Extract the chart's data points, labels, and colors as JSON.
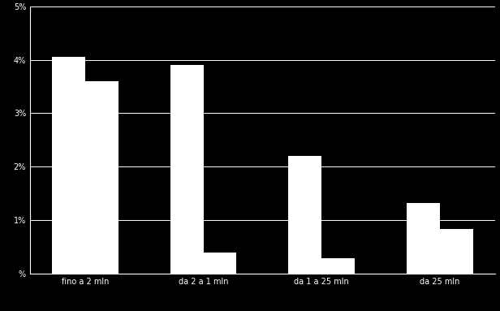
{
  "categories": [
    "fino a 2 mln",
    "da 2 a 1 mln",
    "da 1 a 25 mln",
    "da 25 mln"
  ],
  "lordo": [
    28.36,
    27.33,
    15.42,
    9.3
  ],
  "netto": [
    25.24,
    2.78,
    1.99,
    5.9
  ],
  "bar_color": "#ffffff",
  "background_color": "#000000",
  "text_color": "#ffffff",
  "grid_color": "#ffffff",
  "bar_width": 0.42,
  "ylim": [
    0,
    35
  ],
  "yticks": [
    0,
    7,
    14,
    21,
    28,
    35
  ],
  "ytick_labels": [
    "%",
    "1%",
    "2%",
    "3%",
    "4%",
    "5%"
  ]
}
